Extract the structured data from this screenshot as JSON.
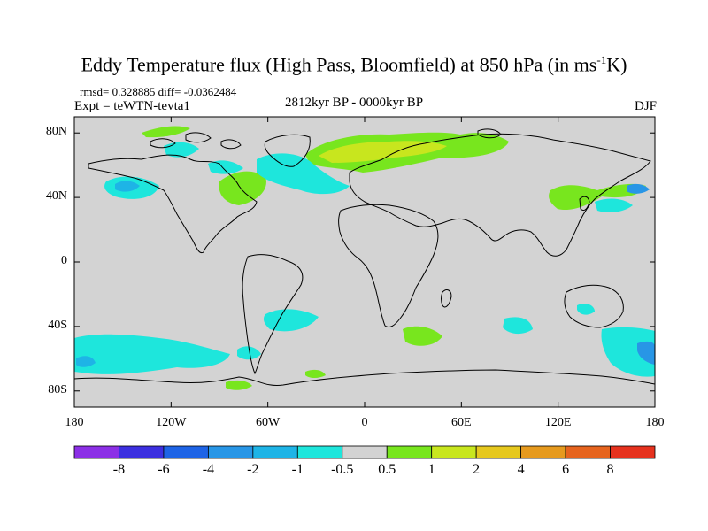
{
  "title": {
    "prefix": "Eddy Temperature flux (High Pass, Bloomfield) at 850 hPa (in ms",
    "sup": "-1",
    "suffix": "K)"
  },
  "stats": "rmsd= 0.328885 diff= -0.0362484",
  "experiment": "Expt = teWTN-tevta1",
  "period": "2812kyr BP - 0000kyr BP",
  "season": "DJF",
  "map": {
    "projection": "cylindrical-equidistant",
    "lon_range": [
      -180,
      180
    ],
    "lat_range": [
      -90,
      90
    ],
    "y_ticks": [
      {
        "lat": 80,
        "label": "80N"
      },
      {
        "lat": 40,
        "label": "40N"
      },
      {
        "lat": 0,
        "label": "0"
      },
      {
        "lat": -40,
        "label": "40S"
      },
      {
        "lat": -80,
        "label": "80S"
      }
    ],
    "x_ticks": [
      {
        "lon": -180,
        "label": "180"
      },
      {
        "lon": -120,
        "label": "120W"
      },
      {
        "lon": -60,
        "label": "60W"
      },
      {
        "lon": 0,
        "label": "0"
      },
      {
        "lon": 60,
        "label": "60E"
      },
      {
        "lon": 120,
        "label": "120E"
      },
      {
        "lon": 180,
        "label": "180"
      }
    ],
    "background_color": "#d3d3d3"
  },
  "colorbar": {
    "levels": [
      "-8",
      "-6",
      "-4",
      "-2",
      "-1",
      "-0.5",
      "0.5",
      "1",
      "2",
      "4",
      "6",
      "8"
    ],
    "colors": [
      "#8c2fe6",
      "#3c2fe0",
      "#1e64e6",
      "#2896e6",
      "#1eb4e6",
      "#1ee6dc",
      "#d3d3d3",
      "#78e61e",
      "#c8e61e",
      "#e6c81e",
      "#e69a1e",
      "#e6641e",
      "#e6321e"
    ]
  }
}
